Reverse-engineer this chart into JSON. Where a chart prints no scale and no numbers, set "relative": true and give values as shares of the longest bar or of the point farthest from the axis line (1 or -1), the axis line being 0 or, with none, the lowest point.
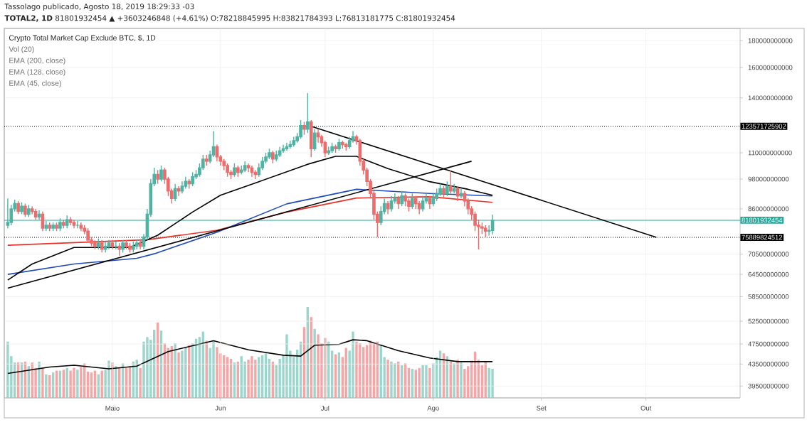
{
  "chart_data": [
    {
      "type": "candlestick",
      "title": "Crypto Total Market Cap Exclude BTC, $, 1D",
      "annotations": [
        "Tassolago publicado, Agosto 18, 2019 18:29:33 -03",
        "**TOTAL2, 1D** 81801932454 ▲ +3603246848 (+4.61%) O:78218845995 H:83821784393 L:76813181775 C:81801932454",
        "Vol (20)",
        "EMA (200, close)",
        "EMA (128, close)",
        "EMA (45, close)"
      ],
      "x": [
        "2019-04-01",
        "2019-04-02",
        "2019-04-03",
        "2019-04-04",
        "2019-04-05",
        "2019-04-06",
        "2019-04-07",
        "2019-04-08",
        "2019-04-09",
        "2019-04-10",
        "2019-04-11",
        "2019-04-12",
        "2019-04-13",
        "2019-04-14",
        "2019-04-15",
        "2019-04-16",
        "2019-04-17",
        "2019-04-18",
        "2019-04-19",
        "2019-04-20",
        "2019-04-21",
        "2019-04-22",
        "2019-04-23",
        "2019-04-24",
        "2019-04-25",
        "2019-04-26",
        "2019-04-27",
        "2019-04-28",
        "2019-04-29",
        "2019-04-30",
        "2019-05-01",
        "2019-05-02",
        "2019-05-03",
        "2019-05-04",
        "2019-05-05",
        "2019-05-06",
        "2019-05-07",
        "2019-05-08",
        "2019-05-09",
        "2019-05-10",
        "2019-05-11",
        "2019-05-12",
        "2019-05-13",
        "2019-05-14",
        "2019-05-15",
        "2019-05-16",
        "2019-05-17",
        "2019-05-18",
        "2019-05-19",
        "2019-05-20",
        "2019-05-21",
        "2019-05-22",
        "2019-05-23",
        "2019-05-24",
        "2019-05-25",
        "2019-05-26",
        "2019-05-27",
        "2019-05-28",
        "2019-05-29",
        "2019-05-30",
        "2019-05-31",
        "2019-06-01",
        "2019-06-02",
        "2019-06-03",
        "2019-06-04",
        "2019-06-05",
        "2019-06-06",
        "2019-06-07",
        "2019-06-08",
        "2019-06-09",
        "2019-06-10",
        "2019-06-11",
        "2019-06-12",
        "2019-06-13",
        "2019-06-14",
        "2019-06-15",
        "2019-06-16",
        "2019-06-17",
        "2019-06-18",
        "2019-06-19",
        "2019-06-20",
        "2019-06-21",
        "2019-06-22",
        "2019-06-23",
        "2019-06-24",
        "2019-06-25",
        "2019-06-26",
        "2019-06-27",
        "2019-06-28",
        "2019-06-29",
        "2019-06-30",
        "2019-07-01",
        "2019-07-02",
        "2019-07-03",
        "2019-07-04",
        "2019-07-05",
        "2019-07-06",
        "2019-07-07",
        "2019-07-08",
        "2019-07-09",
        "2019-07-10",
        "2019-07-11",
        "2019-07-12",
        "2019-07-13",
        "2019-07-14",
        "2019-07-15",
        "2019-07-16",
        "2019-07-17",
        "2019-07-18",
        "2019-07-19",
        "2019-07-20",
        "2019-07-21",
        "2019-07-22",
        "2019-07-23",
        "2019-07-24",
        "2019-07-25",
        "2019-07-26",
        "2019-07-27",
        "2019-07-28",
        "2019-07-29",
        "2019-07-30",
        "2019-07-31",
        "2019-08-01",
        "2019-08-02",
        "2019-08-03",
        "2019-08-04",
        "2019-08-05",
        "2019-08-06",
        "2019-08-07",
        "2019-08-08",
        "2019-08-09",
        "2019-08-10",
        "2019-08-11",
        "2019-08-12",
        "2019-08-13",
        "2019-08-14",
        "2019-08-15",
        "2019-08-16",
        "2019-08-17",
        "2019-08-18"
      ],
      "ohlc": [
        [
          80000000000.0,
          90000000000.0,
          79000000000.0,
          81000000000.0
        ],
        [
          81000000000.0,
          87500000000.0,
          80000000000.0,
          86000000000.0
        ],
        [
          86000000000.0,
          89500000000.0,
          85000000000.0,
          88000000000.0
        ],
        [
          88000000000.0,
          89000000000.0,
          84000000000.0,
          85000000000.0
        ],
        [
          85000000000.0,
          88500000000.0,
          84000000000.0,
          87000000000.0
        ],
        [
          87000000000.0,
          88000000000.0,
          83000000000.0,
          84000000000.0
        ],
        [
          84000000000.0,
          87500000000.0,
          83000000000.0,
          86000000000.0
        ],
        [
          86000000000.0,
          87000000000.0,
          84000000000.0,
          85000000000.0
        ],
        [
          85000000000.0,
          86000000000.0,
          82000000000.0,
          83000000000.0
        ],
        [
          83000000000.0,
          85500000000.0,
          82000000000.0,
          84000000000.0
        ],
        [
          84000000000.0,
          85000000000.0,
          78000000000.0,
          79000000000.0
        ],
        [
          79000000000.0,
          81500000000.0,
          78000000000.0,
          80000000000.0
        ],
        [
          80000000000.0,
          81000000000.0,
          78000000000.0,
          79000000000.0
        ],
        [
          79000000000.0,
          81000000000.0,
          78000000000.0,
          80000000000.0
        ],
        [
          80000000000.0,
          81000000000.0,
          78000000000.0,
          79000000000.0
        ],
        [
          79000000000.0,
          82500000000.0,
          78000000000.0,
          81000000000.0
        ],
        [
          81000000000.0,
          82000000000.0,
          79000000000.0,
          80000000000.0
        ],
        [
          80000000000.0,
          83500000000.0,
          79000000000.0,
          82000000000.0
        ],
        [
          82000000000.0,
          83000000000.0,
          80000000000.0,
          81000000000.0
        ],
        [
          81000000000.0,
          82000000000.0,
          79000000000.0,
          80000000000.0
        ],
        [
          80000000000.0,
          81500000000.0,
          79000000000.0,
          80000000000.0
        ],
        [
          80000000000.0,
          81000000000.0,
          78000000000.0,
          79000000000.0
        ],
        [
          79000000000.0,
          80000000000.0,
          77000000000.0,
          78000000000.0
        ],
        [
          78000000000.0,
          79000000000.0,
          74000000000.0,
          75000000000.0
        ],
        [
          75000000000.0,
          76000000000.0,
          73000000000.0,
          74000000000.0
        ],
        [
          74000000000.0,
          75000000000.0,
          72000000000.0,
          73000000000.0
        ],
        [
          73000000000.0,
          75500000000.0,
          72000000000.0,
          74000000000.0
        ],
        [
          74000000000.0,
          75000000000.0,
          71000000000.0,
          72000000000.0
        ],
        [
          72000000000.0,
          74500000000.0,
          71000000000.0,
          73000000000.0
        ],
        [
          73000000000.0,
          75000000000.0,
          72000000000.0,
          74000000000.0
        ],
        [
          74000000000.0,
          75000000000.0,
          72000000000.0,
          73000000000.0
        ],
        [
          73000000000.0,
          74500000000.0,
          72000000000.0,
          73000000000.0
        ],
        [
          73000000000.0,
          74000000000.0,
          70000000000.0,
          72000000000.0
        ],
        [
          72000000000.0,
          75000000000.0,
          71000000000.0,
          74000000000.0
        ],
        [
          74000000000.0,
          75000000000.0,
          72000000000.0,
          73000000000.0
        ],
        [
          73000000000.0,
          74000000000.0,
          71000000000.0,
          72000000000.0
        ],
        [
          72000000000.0,
          74500000000.0,
          71000000000.0,
          73000000000.0
        ],
        [
          73000000000.0,
          75000000000.0,
          72000000000.0,
          74000000000.0
        ],
        [
          74000000000.0,
          75000000000.0,
          72000000000.0,
          73000000000.0
        ],
        [
          73000000000.0,
          77000000000.0,
          72000000000.0,
          76000000000.0
        ],
        [
          76000000000.0,
          86000000000.0,
          75000000000.0,
          84000000000.0
        ],
        [
          84000000000.0,
          98000000000.0,
          83000000000.0,
          96000000000.0
        ],
        [
          96000000000.0,
          103000000000.0,
          95000000000.0,
          100000000000.0
        ],
        [
          100000000000.0,
          102000000000.0,
          96000000000.0,
          98000000000.0
        ],
        [
          98000000000.0,
          104000000000.0,
          97000000000.0,
          102000000000.0
        ],
        [
          102000000000.0,
          103000000000.0,
          96000000000.0,
          98000000000.0
        ],
        [
          98000000000.0,
          99000000000.0,
          91000000000.0,
          93000000000.0
        ],
        [
          93000000000.0,
          94000000000.0,
          88000000000.0,
          90000000000.0
        ],
        [
          90000000000.0,
          96000000000.0,
          89000000000.0,
          94000000000.0
        ],
        [
          94000000000.0,
          95000000000.0,
          91000000000.0,
          93000000000.0
        ],
        [
          93000000000.0,
          97000000000.0,
          92000000000.0,
          95000000000.0
        ],
        [
          95000000000.0,
          99000000000.0,
          94000000000.0,
          97000000000.0
        ],
        [
          97000000000.0,
          98000000000.0,
          94000000000.0,
          96000000000.0
        ],
        [
          96000000000.0,
          101000000000.0,
          95000000000.0,
          99000000000.0
        ],
        [
          99000000000.0,
          102000000000.0,
          98000000000.0,
          100000000000.0
        ],
        [
          100000000000.0,
          105000000000.0,
          99000000000.0,
          103000000000.0
        ],
        [
          103000000000.0,
          109000000000.0,
          102000000000.0,
          107000000000.0
        ],
        [
          107000000000.0,
          109000000000.0,
          104000000000.0,
          106000000000.0
        ],
        [
          106000000000.0,
          111000000000.0,
          105000000000.0,
          109000000000.0
        ],
        [
          109000000000.0,
          121000000000.0,
          108000000000.0,
          113000000000.0
        ],
        [
          113000000000.0,
          114000000000.0,
          106000000000.0,
          108000000000.0
        ],
        [
          108000000000.0,
          109000000000.0,
          104000000000.0,
          106000000000.0
        ],
        [
          106000000000.0,
          107000000000.0,
          102000000000.0,
          104000000000.0
        ],
        [
          104000000000.0,
          105000000000.0,
          99000000000.0,
          101000000000.0
        ],
        [
          101000000000.0,
          102000000000.0,
          98000000000.0,
          100000000000.0
        ],
        [
          100000000000.0,
          105000000000.0,
          99000000000.0,
          103000000000.0
        ],
        [
          103000000000.0,
          104000000000.0,
          99000000000.0,
          101000000000.0
        ],
        [
          101000000000.0,
          104000000000.0,
          100000000000.0,
          102000000000.0
        ],
        [
          102000000000.0,
          106000000000.0,
          101000000000.0,
          104000000000.0
        ],
        [
          104000000000.0,
          105000000000.0,
          101000000000.0,
          103000000000.0
        ],
        [
          103000000000.0,
          104000000000.0,
          99000000000.0,
          101000000000.0
        ],
        [
          101000000000.0,
          102000000000.0,
          98000000000.0,
          100000000000.0
        ],
        [
          100000000000.0,
          105000000000.0,
          99000000000.0,
          103000000000.0
        ],
        [
          103000000000.0,
          108000000000.0,
          102000000000.0,
          106000000000.0
        ],
        [
          106000000000.0,
          110000000000.0,
          105000000000.0,
          108000000000.0
        ],
        [
          108000000000.0,
          112000000000.0,
          107000000000.0,
          110000000000.0
        ],
        [
          110000000000.0,
          111000000000.0,
          105000000000.0,
          107000000000.0
        ],
        [
          107000000000.0,
          111000000000.0,
          106000000000.0,
          109000000000.0
        ],
        [
          109000000000.0,
          113000000000.0,
          108000000000.0,
          111000000000.0
        ],
        [
          111000000000.0,
          114000000000.0,
          110000000000.0,
          112000000000.0
        ],
        [
          112000000000.0,
          115000000000.0,
          111000000000.0,
          113000000000.0
        ],
        [
          113000000000.0,
          116000000000.0,
          112000000000.0,
          114000000000.0
        ],
        [
          114000000000.0,
          118000000000.0,
          113000000000.0,
          116000000000.0
        ],
        [
          116000000000.0,
          120000000000.0,
          115000000000.0,
          118000000000.0
        ],
        [
          118000000000.0,
          127000000000.0,
          117000000000.0,
          124000000000.0
        ],
        [
          124000000000.0,
          126000000000.0,
          119000000000.0,
          122000000000.0
        ],
        [
          122000000000.0,
          143000000000.0,
          120000000000.0,
          126000000000.0
        ],
        [
          126000000000.0,
          127000000000.0,
          108000000000.0,
          112000000000.0
        ],
        [
          112000000000.0,
          122000000000.0,
          111000000000.0,
          120000000000.0
        ],
        [
          120000000000.0,
          122000000000.0,
          115000000000.0,
          118000000000.0
        ],
        [
          118000000000.0,
          119000000000.0,
          113000000000.0,
          115000000000.0
        ],
        [
          115000000000.0,
          116000000000.0,
          108000000000.0,
          110000000000.0
        ],
        [
          110000000000.0,
          113000000000.0,
          109000000000.0,
          111000000000.0
        ],
        [
          111000000000.0,
          115000000000.0,
          110000000000.0,
          113000000000.0
        ],
        [
          113000000000.0,
          114000000000.0,
          110000000000.0,
          112000000000.0
        ],
        [
          112000000000.0,
          117000000000.0,
          111000000000.0,
          115000000000.0
        ],
        [
          115000000000.0,
          116000000000.0,
          112000000000.0,
          114000000000.0
        ],
        [
          114000000000.0,
          115000000000.0,
          111000000000.0,
          113000000000.0
        ],
        [
          113000000000.0,
          118000000000.0,
          112000000000.0,
          116000000000.0
        ],
        [
          116000000000.0,
          121000000000.0,
          115000000000.0,
          118000000000.0
        ],
        [
          118000000000.0,
          119000000000.0,
          114000000000.0,
          116000000000.0
        ],
        [
          116000000000.0,
          117000000000.0,
          104000000000.0,
          106000000000.0
        ],
        [
          106000000000.0,
          107000000000.0,
          100000000000.0,
          102000000000.0
        ],
        [
          102000000000.0,
          103000000000.0,
          95000000000.0,
          97000000000.0
        ],
        [
          97000000000.0,
          98000000000.0,
          90000000000.0,
          92000000000.0
        ],
        [
          92000000000.0,
          93000000000.0,
          82000000000.0,
          84000000000.0
        ],
        [
          84000000000.0,
          85000000000.0,
          76000000000.0,
          81000000000.0
        ],
        [
          81000000000.0,
          87000000000.0,
          80000000000.0,
          85000000000.0
        ],
        [
          85000000000.0,
          90000000000.0,
          84000000000.0,
          88000000000.0
        ],
        [
          88000000000.0,
          89000000000.0,
          84000000000.0,
          86000000000.0
        ],
        [
          86000000000.0,
          91000000000.0,
          85000000000.0,
          89000000000.0
        ],
        [
          89000000000.0,
          92000000000.0,
          88000000000.0,
          90000000000.0
        ],
        [
          90000000000.0,
          91000000000.0,
          86000000000.0,
          88000000000.0
        ],
        [
          88000000000.0,
          93000000000.0,
          87000000000.0,
          91000000000.0
        ],
        [
          91000000000.0,
          92000000000.0,
          87000000000.0,
          89000000000.0
        ],
        [
          89000000000.0,
          90000000000.0,
          85000000000.0,
          87000000000.0
        ],
        [
          87000000000.0,
          92000000000.0,
          86000000000.0,
          90000000000.0
        ],
        [
          90000000000.0,
          91000000000.0,
          86000000000.0,
          88000000000.0
        ],
        [
          88000000000.0,
          89000000000.0,
          84000000000.0,
          86000000000.0
        ],
        [
          86000000000.0,
          91000000000.0,
          85000000000.0,
          89000000000.0
        ],
        [
          89000000000.0,
          92000000000.0,
          88000000000.0,
          90000000000.0
        ],
        [
          90000000000.0,
          91000000000.0,
          86000000000.0,
          88000000000.0
        ],
        [
          88000000000.0,
          92000000000.0,
          87000000000.0,
          90000000000.0
        ],
        [
          90000000000.0,
          94000000000.0,
          89000000000.0,
          92000000000.0
        ],
        [
          92000000000.0,
          96000000000.0,
          91000000000.0,
          94000000000.0
        ],
        [
          94000000000.0,
          95000000000.0,
          90000000000.0,
          92000000000.0
        ],
        [
          92000000000.0,
          97000000000.0,
          91000000000.0,
          95000000000.0
        ],
        [
          95000000000.0,
          102000000000.0,
          92000000000.0,
          93000000000.0
        ],
        [
          93000000000.0,
          96000000000.0,
          92000000000.0,
          94000000000.0
        ],
        [
          94000000000.0,
          95000000000.0,
          89000000000.0,
          91000000000.0
        ],
        [
          91000000000.0,
          94000000000.0,
          90000000000.0,
          92000000000.0
        ],
        [
          92000000000.0,
          93000000000.0,
          87000000000.0,
          89000000000.0
        ],
        [
          89000000000.0,
          90000000000.0,
          84000000000.0,
          86000000000.0
        ],
        [
          86000000000.0,
          87000000000.0,
          82000000000.0,
          84000000000.0
        ],
        [
          84000000000.0,
          85000000000.0,
          78000000000.0,
          80000000000.0
        ],
        [
          80000000000.0,
          82000000000.0,
          72000000000.0,
          79500000000.0
        ],
        [
          79500000000.0,
          81000000000.0,
          77000000000.0,
          79000000000.0
        ],
        [
          79000000000.0,
          80000000000.0,
          76000000000.0,
          78000000000.0
        ],
        [
          78000000000.0,
          80000000000.0,
          76500000000.0,
          78218845995
        ],
        [
          78218845995,
          83821784393,
          76813181775,
          81801932454
        ]
      ],
      "series": [
        {
          "type": "line",
          "color": "#e8312a",
          "x": [
            "2019-04-01",
            "2019-05-11",
            "2019-05-31",
            "2019-06-20",
            "2019-07-10",
            "2019-07-31",
            "2019-08-18"
          ],
          "values": [
            73300000000.0,
            75100000000.0,
            78300000000.0,
            84800000000.0,
            90200000000.0,
            90700000000.0,
            88500000000.0
          ]
        },
        {
          "type": "line",
          "color": "#1e4bb8",
          "x": [
            "2019-04-01",
            "2019-04-20",
            "2019-05-08",
            "2019-05-13",
            "2019-05-31",
            "2019-06-20",
            "2019-07-10",
            "2019-07-31",
            "2019-08-18"
          ],
          "values": [
            64500000000.0,
            67500000000.0,
            69200000000.0,
            70600000000.0,
            77600000000.0,
            87900000000.0,
            93700000000.0,
            92000000000.0,
            91000000000.0
          ]
        },
        {
          "type": "line",
          "color": "#000000",
          "x": [
            "2019-04-01",
            "2019-04-08",
            "2019-04-20",
            "2019-05-06",
            "2019-05-14",
            "2019-05-24",
            "2019-06-01",
            "2019-06-12",
            "2019-06-26",
            "2019-07-04",
            "2019-07-10",
            "2019-07-19",
            "2019-07-31",
            "2019-08-11",
            "2019-08-18"
          ],
          "values": [
            62900000000.0,
            67500000000.0,
            72600000000.0,
            72600000000.0,
            76600000000.0,
            84800000000.0,
            91300000000.0,
            96900000000.0,
            104600000000.0,
            108300000000.0,
            108300000000.0,
            102600000000.0,
            96900000000.0,
            93700000000.0,
            91300000000.0
          ]
        },
        {
          "type": "line",
          "color": "#000000",
          "x": [
            "2019-06-27",
            "2019-10-04"
          ],
          "values": [
            123600000000.0,
            75900000000.0
          ]
        },
        {
          "type": "line",
          "color": "#000000",
          "x": [
            "2019-04-01",
            "2019-08-12"
          ],
          "values": [
            60700000000.0,
            106000000000.0
          ]
        }
      ],
      "xlim": [
        "2019-03-31",
        "2019-10-28"
      ],
      "xticks": [
        {
          "value": "2019-05-01",
          "label": "Maio"
        },
        {
          "value": "2019-06-01",
          "label": "Jun"
        },
        {
          "value": "2019-07-01",
          "label": "Jul"
        },
        {
          "value": "2019-08-01",
          "label": "Ago"
        },
        {
          "value": "2019-09-01",
          "label": "Set"
        },
        {
          "value": "2019-10-01",
          "label": "Out"
        }
      ],
      "ylim": [
        37500000000.0,
        190000000000.0
      ],
      "yticks": [
        39500000000,
        43500000000,
        47500000000,
        52500000000,
        58500000000,
        64500000000,
        70500000000,
        86000000000,
        98000000000,
        110000000000,
        140000000000,
        160000000000,
        180000000000
      ],
      "log": true,
      "grid": true,
      "ref_lines": [
        {
          "axis": "y",
          "value": 123571725902,
          "label": "123571725902",
          "color": "#000000",
          "line_style": "dotted"
        },
        {
          "axis": "y",
          "value": 81801932454,
          "label": "81801932454",
          "color": "#26a69a",
          "line_style": "solid"
        },
        {
          "axis": "y",
          "value": 75889824512,
          "label": "75889824512",
          "color": "#000000",
          "line_style": "dotted"
        }
      ]
    },
    {
      "type": "bar",
      "relative": true,
      "x": [
        "2019-04-01",
        "2019-04-02",
        "2019-04-03",
        "2019-04-04",
        "2019-04-05",
        "2019-04-06",
        "2019-04-07",
        "2019-04-08",
        "2019-04-09",
        "2019-04-10",
        "2019-04-11",
        "2019-04-12",
        "2019-04-13",
        "2019-04-14",
        "2019-04-15",
        "2019-04-16",
        "2019-04-17",
        "2019-04-18",
        "2019-04-19",
        "2019-04-20",
        "2019-04-21",
        "2019-04-22",
        "2019-04-23",
        "2019-04-24",
        "2019-04-25",
        "2019-04-26",
        "2019-04-27",
        "2019-04-28",
        "2019-04-29",
        "2019-04-30",
        "2019-05-01",
        "2019-05-02",
        "2019-05-03",
        "2019-05-04",
        "2019-05-05",
        "2019-05-06",
        "2019-05-07",
        "2019-05-08",
        "2019-05-09",
        "2019-05-10",
        "2019-05-11",
        "2019-05-12",
        "2019-05-13",
        "2019-05-14",
        "2019-05-15",
        "2019-05-16",
        "2019-05-17",
        "2019-05-18",
        "2019-05-19",
        "2019-05-20",
        "2019-05-21",
        "2019-05-22",
        "2019-05-23",
        "2019-05-24",
        "2019-05-25",
        "2019-05-26",
        "2019-05-27",
        "2019-05-28",
        "2019-05-29",
        "2019-05-30",
        "2019-05-31",
        "2019-06-01",
        "2019-06-02",
        "2019-06-03",
        "2019-06-04",
        "2019-06-05",
        "2019-06-06",
        "2019-06-07",
        "2019-06-08",
        "2019-06-09",
        "2019-06-10",
        "2019-06-11",
        "2019-06-12",
        "2019-06-13",
        "2019-06-14",
        "2019-06-15",
        "2019-06-16",
        "2019-06-17",
        "2019-06-18",
        "2019-06-19",
        "2019-06-20",
        "2019-06-21",
        "2019-06-22",
        "2019-06-23",
        "2019-06-24",
        "2019-06-25",
        "2019-06-26",
        "2019-06-27",
        "2019-06-28",
        "2019-06-29",
        "2019-06-30",
        "2019-07-01",
        "2019-07-02",
        "2019-07-03",
        "2019-07-04",
        "2019-07-05",
        "2019-07-06",
        "2019-07-07",
        "2019-07-08",
        "2019-07-09",
        "2019-07-10",
        "2019-07-11",
        "2019-07-12",
        "2019-07-13",
        "2019-07-14",
        "2019-07-15",
        "2019-07-16",
        "2019-07-17",
        "2019-07-18",
        "2019-07-19",
        "2019-07-20",
        "2019-07-21",
        "2019-07-22",
        "2019-07-23",
        "2019-07-24",
        "2019-07-25",
        "2019-07-26",
        "2019-07-27",
        "2019-07-28",
        "2019-07-29",
        "2019-07-30",
        "2019-07-31",
        "2019-08-01",
        "2019-08-02",
        "2019-08-03",
        "2019-08-04",
        "2019-08-05",
        "2019-08-06",
        "2019-08-07",
        "2019-08-08",
        "2019-08-09",
        "2019-08-10",
        "2019-08-11",
        "2019-08-12",
        "2019-08-13",
        "2019-08-14",
        "2019-08-15",
        "2019-08-16",
        "2019-08-17",
        "2019-08-18"
      ],
      "xlim": [
        "2019-03-31",
        "2019-10-28"
      ],
      "series": [
        {
          "type": "bar",
          "colors": [
            "#9ad6cc",
            "#9ad6cc",
            "#9ad6cc",
            "#f5a5a5",
            "#9ad6cc",
            "#f5a5a5",
            "#9ad6cc",
            "#f5a5a5",
            "#f5a5a5",
            "#9ad6cc",
            "#f5a5a5",
            "#9ad6cc",
            "#f5a5a5",
            "#9ad6cc",
            "#f5a5a5",
            "#9ad6cc",
            "#f5a5a5",
            "#9ad6cc",
            "#f5a5a5",
            "#f5a5a5",
            "#9ad6cc",
            "#f5a5a5",
            "#f5a5a5",
            "#f5a5a5",
            "#f5a5a5",
            "#f5a5a5",
            "#9ad6cc",
            "#f5a5a5",
            "#9ad6cc",
            "#9ad6cc",
            "#f5a5a5",
            "#9ad6cc",
            "#f5a5a5",
            "#9ad6cc",
            "#f5a5a5",
            "#f5a5a5",
            "#9ad6cc",
            "#9ad6cc",
            "#f5a5a5",
            "#9ad6cc",
            "#9ad6cc",
            "#9ad6cc",
            "#9ad6cc",
            "#f5a5a5",
            "#9ad6cc",
            "#f5a5a5",
            "#f5a5a5",
            "#f5a5a5",
            "#9ad6cc",
            "#f5a5a5",
            "#9ad6cc",
            "#9ad6cc",
            "#f5a5a5",
            "#9ad6cc",
            "#9ad6cc",
            "#9ad6cc",
            "#9ad6cc",
            "#f5a5a5",
            "#9ad6cc",
            "#9ad6cc",
            "#f5a5a5",
            "#f5a5a5",
            "#f5a5a5",
            "#f5a5a5",
            "#f5a5a5",
            "#9ad6cc",
            "#f5a5a5",
            "#9ad6cc",
            "#9ad6cc",
            "#f5a5a5",
            "#f5a5a5",
            "#f5a5a5",
            "#9ad6cc",
            "#9ad6cc",
            "#9ad6cc",
            "#9ad6cc",
            "#f5a5a5",
            "#9ad6cc",
            "#9ad6cc",
            "#9ad6cc",
            "#9ad6cc",
            "#9ad6cc",
            "#9ad6cc",
            "#9ad6cc",
            "#9ad6cc",
            "#f5a5a5",
            "#9ad6cc",
            "#f5a5a5",
            "#9ad6cc",
            "#f5a5a5",
            "#f5a5a5",
            "#f5a5a5",
            "#9ad6cc",
            "#9ad6cc",
            "#f5a5a5",
            "#9ad6cc",
            "#f5a5a5",
            "#f5a5a5",
            "#9ad6cc",
            "#9ad6cc",
            "#f5a5a5",
            "#f5a5a5",
            "#f5a5a5",
            "#f5a5a5",
            "#f5a5a5",
            "#f5a5a5",
            "#f5a5a5",
            "#9ad6cc",
            "#9ad6cc",
            "#f5a5a5",
            "#9ad6cc",
            "#9ad6cc",
            "#f5a5a5",
            "#9ad6cc",
            "#f5a5a5",
            "#f5a5a5",
            "#9ad6cc",
            "#f5a5a5",
            "#f5a5a5",
            "#9ad6cc",
            "#9ad6cc",
            "#f5a5a5",
            "#9ad6cc",
            "#9ad6cc",
            "#9ad6cc",
            "#f5a5a5",
            "#9ad6cc",
            "#f5a5a5",
            "#9ad6cc",
            "#f5a5a5",
            "#9ad6cc",
            "#f5a5a5",
            "#f5a5a5",
            "#f5a5a5",
            "#f5a5a5",
            "#f5a5a5",
            "#f5a5a5",
            "#f5a5a5",
            "#9ad6cc",
            "#9ad6cc"
          ],
          "values": [
            0.62,
            0.46,
            0.39,
            0.39,
            0.39,
            0.4,
            0.35,
            0.39,
            0.33,
            0.4,
            0.33,
            0.26,
            0.25,
            0.28,
            0.3,
            0.3,
            0.31,
            0.33,
            0.3,
            0.33,
            0.31,
            0.34,
            0.38,
            0.29,
            0.28,
            0.3,
            0.26,
            0.3,
            0.31,
            0.41,
            0.39,
            0.35,
            0.33,
            0.38,
            0.33,
            0.35,
            0.4,
            0.42,
            0.33,
            0.62,
            0.67,
            0.64,
            0.75,
            0.83,
            0.74,
            0.6,
            0.55,
            0.57,
            0.6,
            0.5,
            0.52,
            0.56,
            0.58,
            0.6,
            0.65,
            0.67,
            0.73,
            0.63,
            0.55,
            0.62,
            0.56,
            0.49,
            0.47,
            0.45,
            0.43,
            0.39,
            0.4,
            0.46,
            0.4,
            0.42,
            0.46,
            0.42,
            0.45,
            0.47,
            0.49,
            0.43,
            0.4,
            0.36,
            0.43,
            0.47,
            0.7,
            0.52,
            0.45,
            0.53,
            0.62,
            0.78,
            1.0,
            0.89,
            0.76,
            0.7,
            0.6,
            0.66,
            0.62,
            0.52,
            0.48,
            0.5,
            0.45,
            0.55,
            0.52,
            0.73,
            0.62,
            0.6,
            0.56,
            0.58,
            0.63,
            0.6,
            0.62,
            0.58,
            0.45,
            0.42,
            0.4,
            0.38,
            0.4,
            0.36,
            0.38,
            0.33,
            0.32,
            0.31,
            0.33,
            0.36,
            0.36,
            0.33,
            0.38,
            0.45,
            0.52,
            0.49,
            0.46,
            0.4,
            0.38,
            0.42,
            0.39,
            0.32,
            0.35,
            0.41,
            0.51,
            0.42,
            0.36,
            0.4,
            0.33,
            0.32
          ]
        },
        {
          "type": "line",
          "color": "#000000",
          "x": [
            "2019-04-01",
            "2019-04-13",
            "2019-04-20",
            "2019-04-30",
            "2019-05-08",
            "2019-05-17",
            "2019-05-30",
            "2019-06-09",
            "2019-06-19",
            "2019-06-24",
            "2019-06-28",
            "2019-07-05",
            "2019-07-09",
            "2019-07-13",
            "2019-07-22",
            "2019-07-31",
            "2019-08-08",
            "2019-08-18"
          ],
          "values": [
            0.27,
            0.34,
            0.36,
            0.32,
            0.35,
            0.51,
            0.63,
            0.53,
            0.47,
            0.46,
            0.58,
            0.59,
            0.64,
            0.63,
            0.52,
            0.44,
            0.4,
            0.4
          ]
        }
      ]
    }
  ]
}
